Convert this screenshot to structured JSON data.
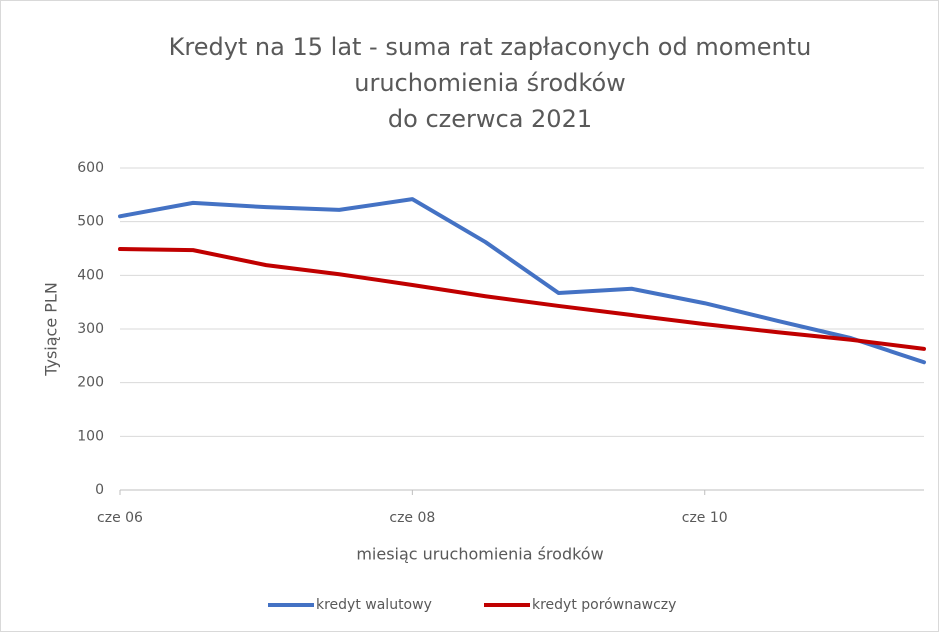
{
  "chart_data": {
    "type": "line",
    "title": [
      "Kredyt na 15 lat - suma rat zapłaconych od momentu",
      "uruchomienia środków",
      "do czerwca 2021"
    ],
    "x_label": "miesiąc uruchomienia środków",
    "y_label": "Tysiące PLN",
    "categories": [
      "cze 06",
      null,
      null,
      null,
      "cze 08",
      null,
      null,
      null,
      "cze 10",
      null,
      null,
      null
    ],
    "series": [
      {
        "name": "kredyt walutowy",
        "color": "#4472c4",
        "values": [
          510,
          535,
          527,
          522,
          542,
          462,
          367,
          375,
          348,
          315,
          283,
          238
        ]
      },
      {
        "name": "kredyt porównawczy",
        "color": "#c00000",
        "values": [
          449,
          447,
          419,
          402,
          382,
          361,
          343,
          326,
          309,
          294,
          280,
          263
        ]
      }
    ],
    "ylim": [
      0,
      600
    ],
    "yticks": [
      0,
      100,
      200,
      300,
      400,
      500,
      600
    ],
    "grid": true,
    "legend": "bottom"
  }
}
